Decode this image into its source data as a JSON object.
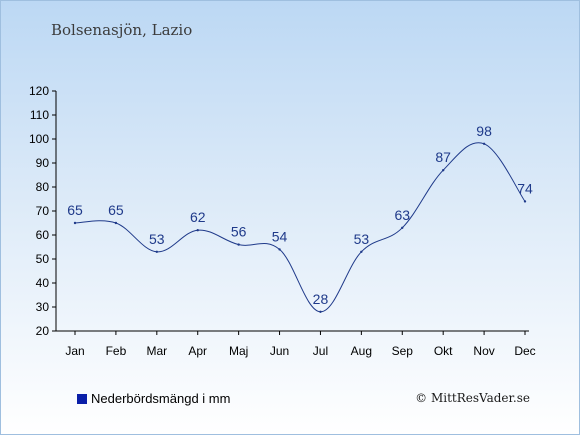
{
  "title": "Bolsenasjön, Lazio",
  "legend": {
    "label": "Nederbördsmängd i mm",
    "color": "#0a1fa8"
  },
  "credit": "© MittResVader.se",
  "colors": {
    "line": "#1f3a8a",
    "axis": "#000000"
  },
  "chart_data": {
    "type": "line",
    "categories": [
      "Jan",
      "Feb",
      "Mar",
      "Apr",
      "Maj",
      "Jun",
      "Jul",
      "Aug",
      "Sep",
      "Okt",
      "Nov",
      "Dec"
    ],
    "series": [
      {
        "name": "Nederbördsmängd i mm",
        "values": [
          65,
          65,
          53,
          62,
          56,
          54,
          28,
          53,
          63,
          87,
          98,
          74
        ]
      }
    ],
    "ylim": [
      20,
      120
    ],
    "yticks": [
      20,
      30,
      40,
      50,
      60,
      70,
      80,
      90,
      100,
      110,
      120
    ],
    "grid": false,
    "legend_position": "bottom-left"
  }
}
